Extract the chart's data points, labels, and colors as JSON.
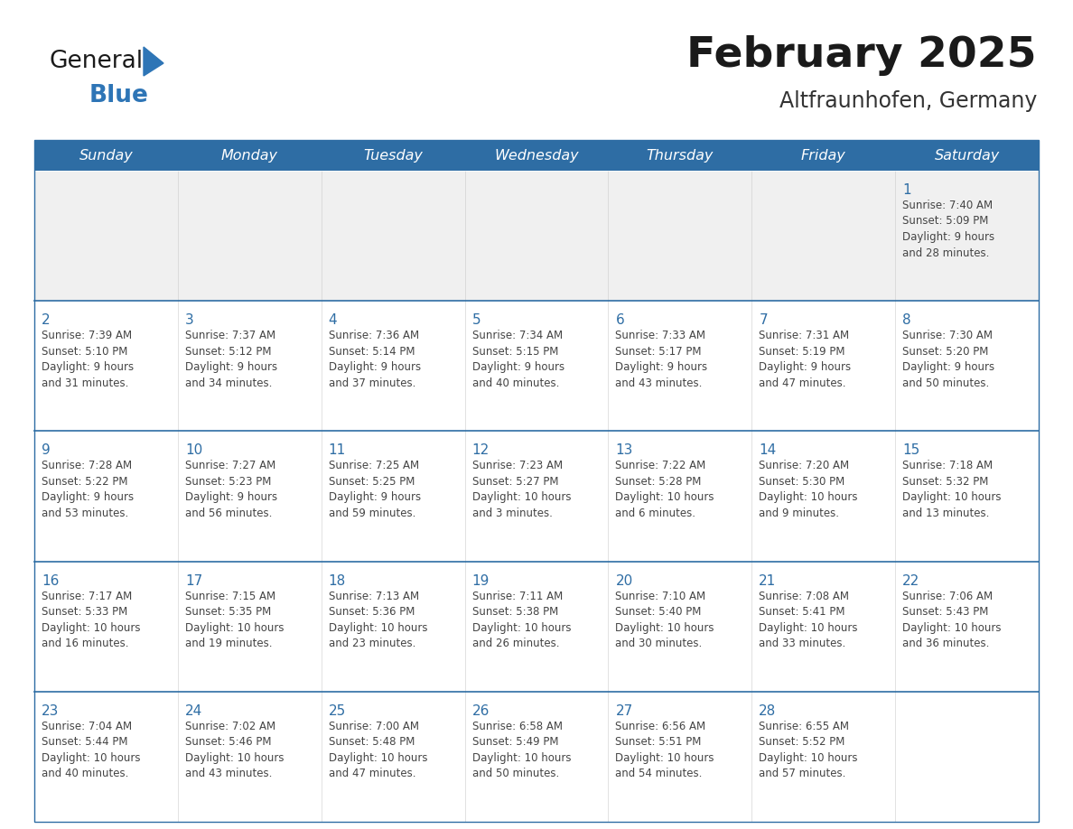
{
  "title": "February 2025",
  "location": "Altfraunhofen, Germany",
  "days_of_week": [
    "Sunday",
    "Monday",
    "Tuesday",
    "Wednesday",
    "Thursday",
    "Friday",
    "Saturday"
  ],
  "header_bg_color": "#2E6DA4",
  "header_text_color": "#FFFFFF",
  "cell_bg_color": "#FFFFFF",
  "first_row_bg": "#F0F0F0",
  "row_separator_color": "#2E6DA4",
  "day_number_color": "#2E6DA4",
  "text_color": "#444444",
  "title_color": "#1a1a1a",
  "location_color": "#333333",
  "logo_general_color": "#1a1a1a",
  "logo_blue_color": "#2E75B6",
  "weeks": [
    [
      {
        "day": null,
        "info": null
      },
      {
        "day": null,
        "info": null
      },
      {
        "day": null,
        "info": null
      },
      {
        "day": null,
        "info": null
      },
      {
        "day": null,
        "info": null
      },
      {
        "day": null,
        "info": null
      },
      {
        "day": 1,
        "info": "Sunrise: 7:40 AM\nSunset: 5:09 PM\nDaylight: 9 hours\nand 28 minutes."
      }
    ],
    [
      {
        "day": 2,
        "info": "Sunrise: 7:39 AM\nSunset: 5:10 PM\nDaylight: 9 hours\nand 31 minutes."
      },
      {
        "day": 3,
        "info": "Sunrise: 7:37 AM\nSunset: 5:12 PM\nDaylight: 9 hours\nand 34 minutes."
      },
      {
        "day": 4,
        "info": "Sunrise: 7:36 AM\nSunset: 5:14 PM\nDaylight: 9 hours\nand 37 minutes."
      },
      {
        "day": 5,
        "info": "Sunrise: 7:34 AM\nSunset: 5:15 PM\nDaylight: 9 hours\nand 40 minutes."
      },
      {
        "day": 6,
        "info": "Sunrise: 7:33 AM\nSunset: 5:17 PM\nDaylight: 9 hours\nand 43 minutes."
      },
      {
        "day": 7,
        "info": "Sunrise: 7:31 AM\nSunset: 5:19 PM\nDaylight: 9 hours\nand 47 minutes."
      },
      {
        "day": 8,
        "info": "Sunrise: 7:30 AM\nSunset: 5:20 PM\nDaylight: 9 hours\nand 50 minutes."
      }
    ],
    [
      {
        "day": 9,
        "info": "Sunrise: 7:28 AM\nSunset: 5:22 PM\nDaylight: 9 hours\nand 53 minutes."
      },
      {
        "day": 10,
        "info": "Sunrise: 7:27 AM\nSunset: 5:23 PM\nDaylight: 9 hours\nand 56 minutes."
      },
      {
        "day": 11,
        "info": "Sunrise: 7:25 AM\nSunset: 5:25 PM\nDaylight: 9 hours\nand 59 minutes."
      },
      {
        "day": 12,
        "info": "Sunrise: 7:23 AM\nSunset: 5:27 PM\nDaylight: 10 hours\nand 3 minutes."
      },
      {
        "day": 13,
        "info": "Sunrise: 7:22 AM\nSunset: 5:28 PM\nDaylight: 10 hours\nand 6 minutes."
      },
      {
        "day": 14,
        "info": "Sunrise: 7:20 AM\nSunset: 5:30 PM\nDaylight: 10 hours\nand 9 minutes."
      },
      {
        "day": 15,
        "info": "Sunrise: 7:18 AM\nSunset: 5:32 PM\nDaylight: 10 hours\nand 13 minutes."
      }
    ],
    [
      {
        "day": 16,
        "info": "Sunrise: 7:17 AM\nSunset: 5:33 PM\nDaylight: 10 hours\nand 16 minutes."
      },
      {
        "day": 17,
        "info": "Sunrise: 7:15 AM\nSunset: 5:35 PM\nDaylight: 10 hours\nand 19 minutes."
      },
      {
        "day": 18,
        "info": "Sunrise: 7:13 AM\nSunset: 5:36 PM\nDaylight: 10 hours\nand 23 minutes."
      },
      {
        "day": 19,
        "info": "Sunrise: 7:11 AM\nSunset: 5:38 PM\nDaylight: 10 hours\nand 26 minutes."
      },
      {
        "day": 20,
        "info": "Sunrise: 7:10 AM\nSunset: 5:40 PM\nDaylight: 10 hours\nand 30 minutes."
      },
      {
        "day": 21,
        "info": "Sunrise: 7:08 AM\nSunset: 5:41 PM\nDaylight: 10 hours\nand 33 minutes."
      },
      {
        "day": 22,
        "info": "Sunrise: 7:06 AM\nSunset: 5:43 PM\nDaylight: 10 hours\nand 36 minutes."
      }
    ],
    [
      {
        "day": 23,
        "info": "Sunrise: 7:04 AM\nSunset: 5:44 PM\nDaylight: 10 hours\nand 40 minutes."
      },
      {
        "day": 24,
        "info": "Sunrise: 7:02 AM\nSunset: 5:46 PM\nDaylight: 10 hours\nand 43 minutes."
      },
      {
        "day": 25,
        "info": "Sunrise: 7:00 AM\nSunset: 5:48 PM\nDaylight: 10 hours\nand 47 minutes."
      },
      {
        "day": 26,
        "info": "Sunrise: 6:58 AM\nSunset: 5:49 PM\nDaylight: 10 hours\nand 50 minutes."
      },
      {
        "day": 27,
        "info": "Sunrise: 6:56 AM\nSunset: 5:51 PM\nDaylight: 10 hours\nand 54 minutes."
      },
      {
        "day": 28,
        "info": "Sunrise: 6:55 AM\nSunset: 5:52 PM\nDaylight: 10 hours\nand 57 minutes."
      },
      {
        "day": null,
        "info": null
      }
    ]
  ]
}
